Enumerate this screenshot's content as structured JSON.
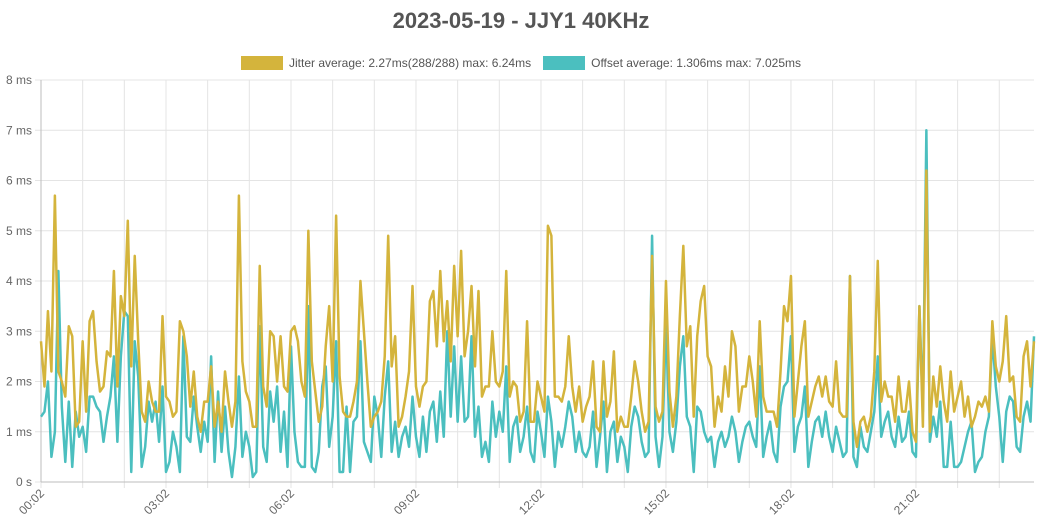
{
  "chart_data": {
    "type": "line",
    "title": "2023-05-19 - JJY1 40KHz",
    "y_unit": "ms",
    "ylim": [
      0,
      8
    ],
    "y_ticks": [
      "0 s",
      "1 ms",
      "2 ms",
      "3 ms",
      "4 ms",
      "5 ms",
      "6 ms",
      "7 ms",
      "8 ms"
    ],
    "x_tick_labels": [
      "00:02",
      "03:02",
      "06:02",
      "09:02",
      "12:02",
      "15:02",
      "18:02",
      "21:02"
    ],
    "x_tick_minutes": [
      2,
      182,
      362,
      542,
      722,
      902,
      1082,
      1262
    ],
    "x_start_minute": 2,
    "x_step_minutes": 5,
    "legend_position": "top-center",
    "grid": true,
    "series": [
      {
        "name": "Jitter average: 2.27ms(288/288) max: 6.24ms",
        "color": "#d4b43c",
        "values": [
          2.8,
          1.9,
          3.4,
          2.2,
          5.7,
          2.2,
          2.0,
          1.7,
          3.1,
          2.9,
          1.1,
          1.2,
          2.8,
          1.4,
          3.2,
          3.4,
          2.4,
          1.8,
          1.9,
          2.6,
          2.5,
          4.2,
          1.9,
          3.7,
          3.3,
          5.2,
          2.3,
          4.5,
          2.8,
          1.4,
          1.2,
          2.0,
          1.6,
          1.4,
          1.4,
          3.3,
          1.7,
          1.6,
          1.3,
          1.4,
          3.2,
          3.0,
          2.5,
          1.5,
          2.2,
          1.3,
          1.0,
          1.6,
          1.6,
          2.3,
          1.1,
          1.6,
          1.0,
          2.2,
          1.6,
          1.1,
          1.6,
          5.7,
          2.4,
          1.8,
          1.6,
          1.1,
          1.1,
          4.3,
          1.9,
          1.5,
          3.0,
          2.9,
          2.0,
          2.9,
          1.9,
          1.8,
          3.0,
          3.1,
          2.8,
          2.0,
          1.7,
          5.0,
          2.4,
          1.8,
          1.2,
          1.5,
          2.7,
          3.5,
          2.0,
          5.3,
          2.1,
          1.4,
          1.3,
          1.3,
          1.6,
          2.0,
          4.0,
          3.0,
          2.0,
          1.1,
          1.3,
          1.4,
          1.6,
          2.5,
          4.9,
          2.3,
          2.9,
          1.1,
          1.3,
          1.7,
          2.2,
          3.9,
          1.9,
          1.5,
          1.9,
          2.0,
          3.6,
          3.8,
          2.7,
          4.2,
          2.8,
          3.6,
          2.4,
          4.3,
          2.9,
          4.6,
          2.5,
          3.0,
          3.9,
          2.3,
          3.8,
          1.7,
          1.9,
          1.9,
          3.0,
          2.0,
          1.9,
          2.2,
          4.2,
          1.7,
          2.0,
          1.9,
          1.2,
          1.4,
          3.2,
          1.2,
          1.2,
          2.0,
          1.7,
          1.4,
          5.1,
          4.9,
          1.7,
          1.7,
          1.6,
          1.9,
          2.9,
          1.9,
          1.4,
          1.9,
          1.2,
          1.5,
          1.7,
          2.4,
          1.1,
          1.0,
          2.4,
          1.3,
          1.6,
          2.6,
          1.0,
          1.3,
          1.1,
          1.1,
          1.7,
          2.4,
          2.0,
          1.4,
          1.0,
          1.2,
          4.5,
          1.5,
          1.2,
          1.4,
          4.0,
          1.8,
          1.1,
          1.7,
          3.3,
          4.7,
          2.7,
          3.1,
          1.3,
          2.9,
          3.6,
          3.9,
          2.5,
          2.3,
          1.1,
          1.7,
          1.4,
          2.3,
          1.7,
          3.0,
          2.7,
          1.4,
          1.9,
          1.9,
          2.5,
          2.0,
          1.3,
          3.2,
          1.7,
          1.4,
          1.4,
          1.4,
          1.1,
          2.2,
          3.5,
          3.2,
          4.1,
          1.3,
          2.0,
          2.7,
          3.2,
          1.3,
          1.6,
          1.9,
          2.1,
          1.7,
          2.1,
          1.6,
          1.5,
          2.4,
          1.4,
          1.3,
          1.3,
          4.1,
          1.2,
          0.7,
          1.2,
          1.3,
          1.0,
          1.3,
          2.2,
          4.4,
          1.6,
          2.0,
          1.7,
          1.7,
          1.2,
          2.1,
          1.4,
          1.4,
          2.0,
          1.0,
          0.8,
          3.5,
          1.1,
          6.2,
          1.0,
          2.1,
          1.5,
          2.3,
          1.6,
          1.2,
          2.2,
          1.4,
          1.7,
          2.0,
          1.3,
          1.7,
          1.1,
          1.3,
          1.6,
          1.5,
          1.7,
          1.4,
          3.2,
          2.3,
          2.0,
          2.4,
          3.3,
          2.0,
          2.1,
          1.3,
          1.2,
          2.5,
          2.8,
          1.9,
          2.8
        ]
      },
      {
        "name": "Offset average: 1.306ms max: 7.025ms",
        "color": "#4bbfbf",
        "values": [
          1.3,
          1.4,
          2.0,
          0.5,
          1.0,
          4.2,
          1.5,
          0.4,
          1.6,
          0.3,
          1.4,
          0.9,
          1.1,
          0.6,
          1.7,
          1.7,
          1.5,
          1.4,
          0.8,
          1.3,
          1.7,
          2.5,
          0.8,
          2.5,
          3.4,
          3.3,
          0.2,
          2.8,
          2.1,
          0.3,
          0.7,
          1.6,
          1.2,
          1.6,
          0.8,
          1.9,
          0.2,
          0.4,
          1.0,
          0.7,
          0.2,
          2.9,
          0.9,
          0.8,
          1.7,
          1.1,
          0.6,
          1.2,
          0.8,
          2.5,
          0.4,
          1.8,
          0.6,
          1.5,
          0.6,
          0.1,
          0.7,
          2.1,
          0.5,
          1.0,
          0.7,
          0.1,
          0.2,
          3.1,
          0.7,
          0.4,
          1.8,
          1.2,
          1.9,
          0.6,
          1.4,
          0.3,
          2.7,
          1.0,
          0.4,
          0.3,
          0.3,
          3.5,
          0.3,
          0.2,
          0.6,
          1.9,
          2.3,
          0.7,
          1.3,
          2.8,
          0.2,
          0.2,
          1.5,
          0.2,
          1.2,
          1.3,
          2.8,
          0.8,
          0.6,
          0.4,
          1.7,
          1.3,
          0.5,
          1.7,
          2.4,
          0.6,
          1.2,
          0.5,
          0.9,
          1.1,
          0.7,
          1.7,
          0.9,
          0.5,
          1.3,
          0.6,
          1.4,
          1.6,
          0.8,
          1.8,
          0.9,
          3.0,
          1.3,
          2.7,
          1.2,
          2.5,
          1.2,
          1.3,
          2.9,
          0.9,
          1.5,
          0.5,
          0.8,
          0.4,
          1.6,
          0.9,
          1.4,
          1.0,
          2.3,
          0.4,
          1.1,
          1.3,
          0.6,
          0.9,
          1.5,
          0.6,
          0.4,
          1.4,
          1.0,
          0.5,
          1.7,
          1.2,
          0.3,
          1.0,
          0.7,
          1.1,
          1.6,
          1.3,
          0.6,
          1.0,
          0.6,
          0.5,
          0.7,
          1.4,
          0.3,
          0.9,
          1.6,
          0.2,
          1.0,
          1.2,
          0.4,
          0.9,
          0.7,
          0.2,
          1.1,
          1.5,
          1.3,
          0.8,
          0.5,
          0.6,
          4.9,
          0.9,
          0.3,
          0.9,
          3.2,
          1.0,
          0.6,
          1.2,
          2.3,
          2.9,
          1.3,
          1.1,
          0.2,
          1.5,
          1.4,
          1.0,
          0.8,
          0.9,
          0.3,
          0.8,
          1.0,
          0.7,
          0.9,
          1.3,
          1.0,
          0.4,
          0.8,
          1.1,
          1.2,
          0.9,
          0.7,
          2.3,
          0.5,
          0.9,
          1.2,
          0.6,
          0.4,
          1.5,
          1.9,
          2.0,
          2.9,
          0.6,
          1.1,
          1.3,
          1.9,
          0.3,
          0.8,
          1.2,
          1.3,
          0.9,
          1.4,
          0.9,
          0.6,
          1.1,
          0.8,
          0.5,
          0.6,
          4.1,
          0.5,
          0.3,
          1.1,
          0.7,
          0.6,
          1.0,
          1.4,
          2.5,
          0.9,
          1.2,
          1.4,
          0.9,
          0.7,
          1.3,
          0.8,
          0.9,
          1.4,
          0.6,
          0.5,
          3.5,
          1.4,
          7.0,
          0.8,
          1.3,
          0.9,
          1.6,
          0.3,
          0.3,
          1.2,
          0.3,
          0.3,
          0.4,
          0.7,
          1.0,
          1.2,
          0.2,
          0.4,
          0.5,
          1.0,
          1.3,
          2.9,
          1.9,
          1.3,
          0.4,
          1.4,
          1.7,
          1.6,
          0.7,
          0.6,
          1.3,
          1.6,
          1.2,
          2.9
        ]
      }
    ]
  }
}
